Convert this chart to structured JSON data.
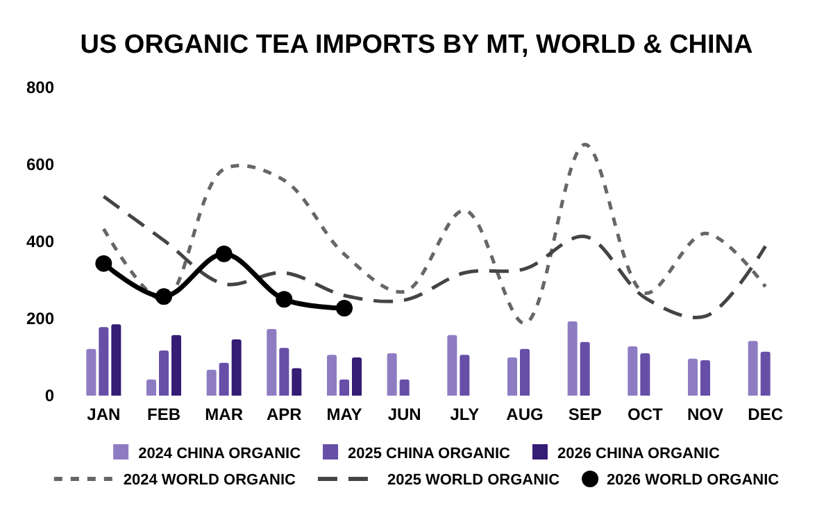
{
  "chart_data": {
    "type": "bar",
    "title": "US ORGANIC TEA IMPORTS BY MT, WORLD & CHINA",
    "categories": [
      "JAN",
      "FEB",
      "MAR",
      "APR",
      "MAY",
      "JUN",
      "JLY",
      "AUG",
      "SEP",
      "OCT",
      "NOV",
      "DEC"
    ],
    "ylim": [
      0,
      800
    ],
    "yticks": [
      0,
      200,
      400,
      600,
      800
    ],
    "grid": false,
    "legend": "bottom",
    "series": [
      {
        "name": "2024 CHINA ORGANIC",
        "color": "#8e7cc3",
        "values": [
          121,
          42,
          67,
          173,
          106,
          110,
          157,
          99,
          193,
          128,
          96,
          142
        ]
      },
      {
        "name": "2025 CHINA ORGANIC",
        "color": "#674ea7",
        "values": [
          178,
          117,
          85,
          124,
          42,
          42,
          106,
          121,
          139,
          110,
          92,
          114
        ]
      },
      {
        "name": "2026 CHINA ORGANIC",
        "color": "#351c75",
        "values": [
          185,
          157,
          146,
          71,
          99,
          null,
          null,
          null,
          null,
          null,
          null,
          null
        ]
      },
      {
        "name": "2024 WORLD ORGANIC",
        "type": "line",
        "color": "#666666",
        "line_style": "dashed",
        "marker": "none",
        "values": [
          433,
          248,
          588,
          559,
          367,
          270,
          481,
          188,
          652,
          266,
          421,
          283
        ]
      },
      {
        "name": "2025 WORLD ORGANIC",
        "type": "line",
        "color": "#444444",
        "line_style": "dashed",
        "marker": "none",
        "values": [
          517,
          403,
          290,
          319,
          260,
          248,
          319,
          329,
          413,
          254,
          206,
          388
        ]
      },
      {
        "name": "2026 WORLD ORGANIC",
        "type": "line",
        "color": "#000000",
        "line_style": "solid",
        "marker": "circle",
        "values": [
          343,
          257,
          368,
          250,
          227,
          null,
          null,
          null,
          null,
          null,
          null,
          null
        ]
      }
    ]
  }
}
